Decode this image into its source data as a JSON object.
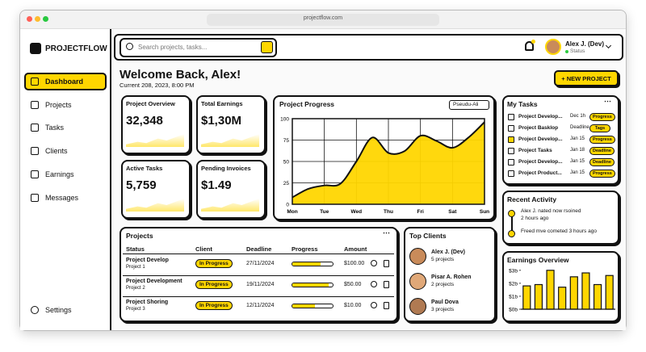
{
  "browser": {
    "url": "projectflow.com"
  },
  "sidebar": {
    "logo": "PROJECTFLOW",
    "nav": [
      "Dashboard",
      "Projects",
      "Tasks",
      "Clients",
      "Earnings",
      "Messages"
    ],
    "settings": "Settings"
  },
  "header": {
    "search_placeholder": "Search projects, tasks...",
    "user_name": "Alex J. (Dev)",
    "user_status": "Status"
  },
  "welcome": {
    "title": "Welcome Back, Alex!",
    "date": "Current 208, 2023, 8:00 PM",
    "button": "+ NEW PROJECT"
  },
  "stats": [
    {
      "label": "Project Overview",
      "value": "32,348"
    },
    {
      "label": "Total Earnings",
      "value": "$1,30M"
    },
    {
      "label": "Active Tasks",
      "value": "5,759"
    },
    {
      "label": "Pending Invoices",
      "value": "$1.49"
    }
  ],
  "progress_chart": {
    "type": "area",
    "title": "Project Progress",
    "dropdown": "Pseudu-Ali",
    "x": [
      0,
      0.5,
      1,
      1.5,
      2,
      2.5,
      3,
      3.5,
      4,
      4.5,
      5,
      5.5,
      6
    ],
    "values": [
      8,
      18,
      22,
      24,
      50,
      78,
      60,
      62,
      80,
      74,
      66,
      78,
      96
    ],
    "xlim": [
      0,
      6
    ],
    "xticks": [
      {
        "value": 0,
        "label": "Mon"
      },
      {
        "value": 1,
        "label": "Tue"
      },
      {
        "value": 2,
        "label": "Wed"
      },
      {
        "value": 3,
        "label": "Thu"
      },
      {
        "value": 4,
        "label": "Fri"
      },
      {
        "value": 5,
        "label": "Sat"
      },
      {
        "value": 6,
        "label": "Sun"
      }
    ],
    "ylim": [
      0,
      100
    ],
    "yticks": [
      0,
      25,
      50,
      75,
      100
    ],
    "color": "#ffd600",
    "grid": true
  },
  "projects": {
    "title": "Projects",
    "columns": [
      "Status",
      "Client",
      "Deadline",
      "Progress",
      "Amount"
    ],
    "rows": [
      {
        "name": "Project Develop",
        "sub": "Project 1",
        "status": "In Progress",
        "deadline": "27/11/2024",
        "progress": 70,
        "amount": "$100.00"
      },
      {
        "name": "Project Development",
        "sub": "Project 2",
        "status": "In Progress",
        "deadline": "19/11/2024",
        "progress": 90,
        "amount": "$50.00"
      },
      {
        "name": "Project Shoring",
        "sub": "Project 3",
        "status": "In Progress",
        "deadline": "12/11/2024",
        "progress": 55,
        "amount": "$10.00"
      }
    ]
  },
  "top_clients": {
    "title": "Top Clients",
    "clients": [
      {
        "name": "Alex J. (Dev)",
        "projects": "5 projects"
      },
      {
        "name": "Pisar A. Rohen",
        "projects": "2 projects"
      },
      {
        "name": "Paul Dova",
        "projects": "3 projects"
      }
    ]
  },
  "tasks": {
    "title": "My Tasks",
    "items": [
      {
        "name": "Project Develop...",
        "date": "Dec 1h",
        "tag": "Progress",
        "checked": false
      },
      {
        "name": "Project Basklop",
        "date": "Deadline",
        "tag": "Tags",
        "checked": false
      },
      {
        "name": "Project Develop...",
        "date": "Jan 15",
        "tag": "Progress",
        "checked": true
      },
      {
        "name": "Project Tasks",
        "date": "Jan 18",
        "tag": "Deadline",
        "checked": false
      },
      {
        "name": "Project Develop...",
        "date": "Jan 15",
        "tag": "Deadline",
        "checked": false
      },
      {
        "name": "Project Product...",
        "date": "Jan 15",
        "tag": "Progress",
        "checked": false
      }
    ]
  },
  "activity": {
    "title": "Recent Activity",
    "items": [
      {
        "text": "Alex J. nated now rsoined",
        "time": "2 hours ago"
      },
      {
        "text": "Freed mve cometed 3 hours ago"
      }
    ]
  },
  "earnings_chart": {
    "type": "bar",
    "title": "Earnings Overview",
    "values": [
      1.8,
      1.9,
      3.0,
      1.7,
      2.5,
      2.8,
      1.9,
      2.6
    ],
    "ylim": [
      0,
      3.3
    ],
    "yticks": [
      {
        "value": 0,
        "label": "$0b"
      },
      {
        "value": 1,
        "label": "$1b"
      },
      {
        "value": 2,
        "label": "$2b"
      },
      {
        "value": 3,
        "label": "$3b"
      }
    ],
    "color": "#ffd600"
  }
}
